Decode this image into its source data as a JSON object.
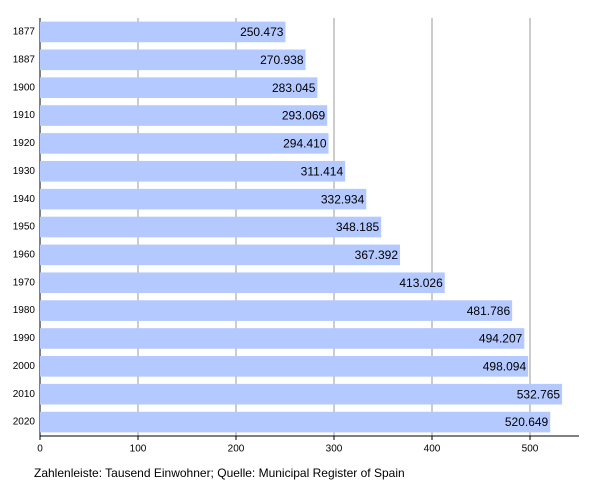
{
  "chart_data": {
    "type": "bar",
    "orientation": "horizontal",
    "categories": [
      "1877",
      "1887",
      "1900",
      "1910",
      "1920",
      "1930",
      "1940",
      "1950",
      "1960",
      "1970",
      "1980",
      "1990",
      "2000",
      "2010",
      "2020"
    ],
    "values": [
      250.473,
      270.938,
      283.045,
      293.069,
      294.41,
      311.414,
      332.934,
      348.185,
      367.392,
      413.026,
      481.786,
      494.207,
      498.094,
      532.765,
      520.649
    ],
    "value_labels": [
      "250.473",
      "270.938",
      "283.045",
      "293.069",
      "294.410",
      "311.414",
      "332.934",
      "348.185",
      "367.392",
      "413.026",
      "481.786",
      "494.207",
      "498.094",
      "532.765",
      "520.649"
    ],
    "color": "#b4c9ff",
    "xlim": [
      0,
      550
    ],
    "xticks": [
      0,
      100,
      200,
      300,
      400,
      500
    ],
    "grid": true,
    "caption": "Zahlenleiste: Tausend Einwohner; Quelle: Municipal Register of Spain"
  }
}
